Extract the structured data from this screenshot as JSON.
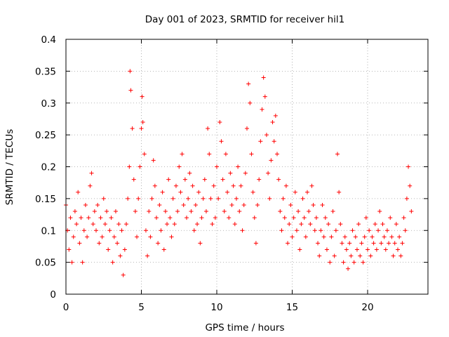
{
  "chart_data": {
    "type": "scatter",
    "title": "Day 001 of 2023, SRMTID for receiver hil1",
    "xlabel": "GPS time / hours",
    "ylabel": "SRMTID / TECUs",
    "xlim": [
      0,
      24
    ],
    "ylim": [
      0,
      0.4
    ],
    "xticks": [
      0,
      5,
      10,
      15,
      20
    ],
    "xtick_labels": [
      "0",
      "5",
      "10",
      "15",
      "20"
    ],
    "yticks": [
      0,
      0.05,
      0.1,
      0.15,
      0.2,
      0.25,
      0.3,
      0.35,
      0.4
    ],
    "ytick_labels": [
      "0",
      "0.05",
      "0.1",
      "0.15",
      "0.2",
      "0.25",
      "0.3",
      "0.35",
      "0.4"
    ],
    "grid": true,
    "marker": "plus",
    "color": "#ff0000",
    "series": [
      {
        "x": [
          0.0,
          0.1,
          0.2,
          0.3,
          0.4,
          0.5,
          0.6,
          0.7,
          0.8,
          0.9,
          1.0,
          1.1,
          1.2,
          1.3,
          1.4,
          1.5,
          1.6,
          1.7,
          1.8,
          1.9,
          2.0,
          2.1,
          2.2,
          2.3,
          2.4,
          2.5,
          2.6,
          2.7,
          2.8,
          2.9,
          3.0,
          3.1,
          3.2,
          3.3,
          3.4,
          3.5,
          3.6,
          3.7,
          3.8,
          3.9,
          4.0,
          4.1,
          4.2,
          4.25,
          4.3,
          4.4,
          4.5,
          4.6,
          4.7,
          4.8,
          4.9,
          5.0,
          5.05,
          5.1,
          5.2,
          5.3,
          5.4,
          5.5,
          5.6,
          5.7,
          5.8,
          5.9,
          6.0,
          6.1,
          6.2,
          6.3,
          6.4,
          6.5,
          6.6,
          6.7,
          6.8,
          6.9,
          7.0,
          7.1,
          7.2,
          7.3,
          7.4,
          7.5,
          7.6,
          7.7,
          7.8,
          7.9,
          8.0,
          8.1,
          8.2,
          8.3,
          8.4,
          8.5,
          8.6,
          8.7,
          8.8,
          8.9,
          9.0,
          9.1,
          9.2,
          9.3,
          9.4,
          9.5,
          9.6,
          9.7,
          9.8,
          9.9,
          10.0,
          10.1,
          10.2,
          10.3,
          10.4,
          10.5,
          10.6,
          10.7,
          10.8,
          10.9,
          11.0,
          11.1,
          11.2,
          11.3,
          11.4,
          11.5,
          11.6,
          11.7,
          11.8,
          11.9,
          12.0,
          12.1,
          12.2,
          12.3,
          12.4,
          12.5,
          12.6,
          12.7,
          12.8,
          12.9,
          13.0,
          13.1,
          13.2,
          13.3,
          13.4,
          13.5,
          13.6,
          13.7,
          13.8,
          13.9,
          14.0,
          14.1,
          14.2,
          14.3,
          14.4,
          14.5,
          14.6,
          14.7,
          14.8,
          14.9,
          15.0,
          15.1,
          15.2,
          15.3,
          15.4,
          15.5,
          15.6,
          15.7,
          15.8,
          15.9,
          16.0,
          16.1,
          16.2,
          16.3,
          16.4,
          16.5,
          16.6,
          16.7,
          16.8,
          16.9,
          17.0,
          17.1,
          17.2,
          17.3,
          17.4,
          17.5,
          17.6,
          17.7,
          17.8,
          17.9,
          18.0,
          18.1,
          18.2,
          18.3,
          18.4,
          18.5,
          18.6,
          18.7,
          18.8,
          18.9,
          19.0,
          19.1,
          19.2,
          19.3,
          19.4,
          19.5,
          19.6,
          19.7,
          19.8,
          19.9,
          20.0,
          20.1,
          20.2,
          20.3,
          20.4,
          20.5,
          20.6,
          20.7,
          20.8,
          20.9,
          21.0,
          21.1,
          21.2,
          21.3,
          21.4,
          21.5,
          21.6,
          21.7,
          21.8,
          21.9,
          22.0,
          22.1,
          22.2,
          22.3,
          22.4,
          22.5,
          22.6,
          22.7,
          22.8,
          22.9
        ],
        "y": [
          0.14,
          0.1,
          0.07,
          0.12,
          0.05,
          0.09,
          0.13,
          0.11,
          0.16,
          0.08,
          0.12,
          0.05,
          0.1,
          0.14,
          0.09,
          0.12,
          0.17,
          0.19,
          0.11,
          0.13,
          0.1,
          0.14,
          0.08,
          0.12,
          0.09,
          0.15,
          0.11,
          0.13,
          0.07,
          0.1,
          0.12,
          0.05,
          0.09,
          0.13,
          0.08,
          0.11,
          0.06,
          0.1,
          0.03,
          0.07,
          0.11,
          0.15,
          0.2,
          0.35,
          0.32,
          0.26,
          0.18,
          0.13,
          0.09,
          0.15,
          0.2,
          0.26,
          0.31,
          0.27,
          0.22,
          0.1,
          0.06,
          0.13,
          0.09,
          0.15,
          0.21,
          0.17,
          0.12,
          0.08,
          0.14,
          0.1,
          0.16,
          0.07,
          0.13,
          0.11,
          0.18,
          0.12,
          0.09,
          0.15,
          0.11,
          0.17,
          0.13,
          0.2,
          0.16,
          0.22,
          0.14,
          0.18,
          0.12,
          0.15,
          0.19,
          0.13,
          0.17,
          0.1,
          0.14,
          0.11,
          0.16,
          0.08,
          0.12,
          0.15,
          0.18,
          0.13,
          0.26,
          0.22,
          0.15,
          0.11,
          0.17,
          0.12,
          0.2,
          0.15,
          0.27,
          0.24,
          0.18,
          0.13,
          0.22,
          0.16,
          0.12,
          0.19,
          0.14,
          0.17,
          0.11,
          0.15,
          0.2,
          0.13,
          0.17,
          0.1,
          0.14,
          0.19,
          0.26,
          0.33,
          0.3,
          0.22,
          0.16,
          0.12,
          0.08,
          0.14,
          0.18,
          0.24,
          0.29,
          0.34,
          0.31,
          0.25,
          0.19,
          0.15,
          0.21,
          0.27,
          0.24,
          0.28,
          0.22,
          0.18,
          0.13,
          0.1,
          0.15,
          0.12,
          0.17,
          0.08,
          0.11,
          0.14,
          0.09,
          0.12,
          0.16,
          0.1,
          0.13,
          0.07,
          0.11,
          0.15,
          0.12,
          0.09,
          0.16,
          0.13,
          0.11,
          0.17,
          0.14,
          0.1,
          0.12,
          0.08,
          0.06,
          0.1,
          0.14,
          0.09,
          0.12,
          0.07,
          0.11,
          0.05,
          0.09,
          0.13,
          0.06,
          0.1,
          0.22,
          0.16,
          0.11,
          0.08,
          0.05,
          0.09,
          0.07,
          0.04,
          0.08,
          0.06,
          0.1,
          0.05,
          0.09,
          0.07,
          0.11,
          0.06,
          0.08,
          0.05,
          0.09,
          0.12,
          0.07,
          0.1,
          0.06,
          0.09,
          0.08,
          0.11,
          0.07,
          0.1,
          0.13,
          0.08,
          0.11,
          0.09,
          0.07,
          0.1,
          0.08,
          0.12,
          0.09,
          0.06,
          0.08,
          0.11,
          0.07,
          0.09,
          0.06,
          0.08,
          0.12,
          0.1,
          0.15,
          0.2,
          0.17,
          0.13
        ]
      }
    ]
  }
}
